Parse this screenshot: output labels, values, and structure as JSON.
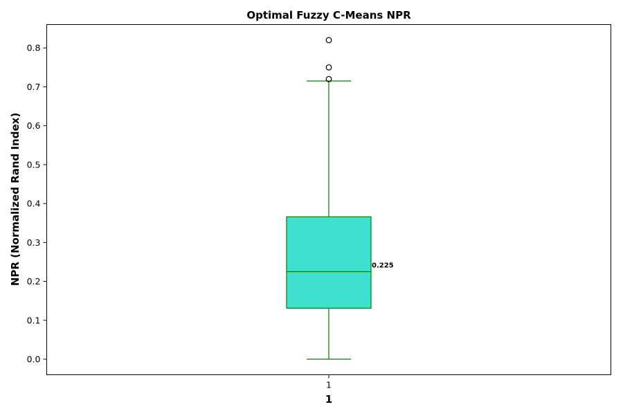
{
  "chart_data": {
    "type": "box",
    "title": "Optimal Fuzzy C-Means NPR",
    "xlabel": "1",
    "ylabel": "NPR (Normalized Rand Index)",
    "categories": [
      "1"
    ],
    "ylim": [
      -0.04,
      0.86
    ],
    "yticks": [
      0.0,
      0.1,
      0.2,
      0.3,
      0.4,
      0.5,
      0.6,
      0.7,
      0.8
    ],
    "ytick_labels": [
      "0.0",
      "0.1",
      "0.2",
      "0.3",
      "0.4",
      "0.5",
      "0.6",
      "0.7",
      "0.8"
    ],
    "grid": false,
    "boxes": [
      {
        "category": "1",
        "whisker_low": 0.0,
        "q1": 0.131,
        "median": 0.225,
        "q3": 0.366,
        "whisker_high": 0.715,
        "outliers": [
          0.72,
          0.75,
          0.82
        ],
        "median_label": "0.225"
      }
    ],
    "colors": {
      "box_fill": "#40e0d0",
      "box_edge": "#008000",
      "outlier_edge": "#000000"
    }
  }
}
